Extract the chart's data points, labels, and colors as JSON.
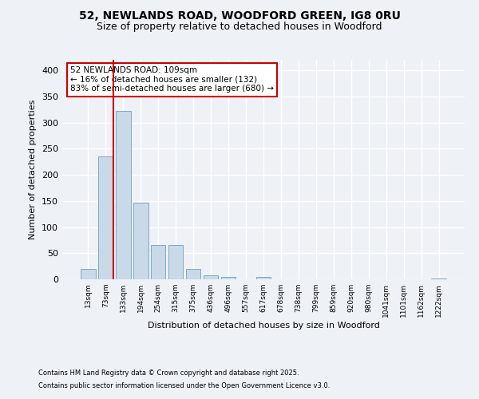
{
  "title1": "52, NEWLANDS ROAD, WOODFORD GREEN, IG8 0RU",
  "title2": "Size of property relative to detached houses in Woodford",
  "xlabel": "Distribution of detached houses by size in Woodford",
  "ylabel": "Number of detached properties",
  "categories": [
    "13sqm",
    "73sqm",
    "133sqm",
    "194sqm",
    "254sqm",
    "315sqm",
    "375sqm",
    "436sqm",
    "496sqm",
    "557sqm",
    "617sqm",
    "678sqm",
    "738sqm",
    "799sqm",
    "859sqm",
    "920sqm",
    "980sqm",
    "1041sqm",
    "1101sqm",
    "1162sqm",
    "1222sqm"
  ],
  "values": [
    20,
    235,
    323,
    147,
    65,
    65,
    20,
    8,
    5,
    0,
    4,
    0,
    0,
    0,
    0,
    0,
    0,
    0,
    0,
    0,
    2
  ],
  "bar_color": "#c9d9e8",
  "bar_edge_color": "#7aaac8",
  "vline_color": "#cc0000",
  "ylim": [
    0,
    420
  ],
  "yticks": [
    0,
    50,
    100,
    150,
    200,
    250,
    300,
    350,
    400
  ],
  "annotation_text": "52 NEWLANDS ROAD: 109sqm\n← 16% of detached houses are smaller (132)\n83% of semi-detached houses are larger (680) →",
  "annotation_box_color": "#ffffff",
  "annotation_box_edge": "#cc0000",
  "footer1": "Contains HM Land Registry data © Crown copyright and database right 2025.",
  "footer2": "Contains public sector information licensed under the Open Government Licence v3.0.",
  "bg_color": "#eef2f7",
  "plot_bg_color": "#eef2f7",
  "grid_color": "#ffffff",
  "title1_fontsize": 10,
  "title2_fontsize": 9,
  "ylabel_fontsize": 8,
  "xlabel_fontsize": 8,
  "ytick_fontsize": 8,
  "xtick_fontsize": 6.5,
  "annot_fontsize": 7.5,
  "footer_fontsize": 6.0
}
